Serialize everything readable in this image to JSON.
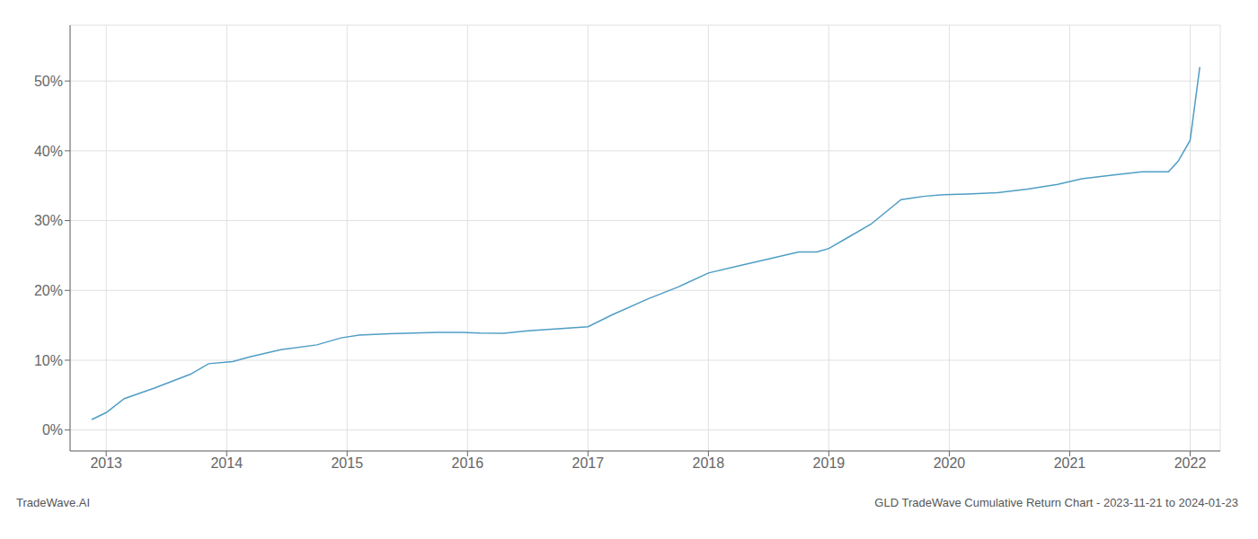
{
  "chart_data": {
    "type": "line",
    "title": "GLD TradeWave Cumulative Return Chart - 2023-11-21 to 2024-01-23",
    "annotations": [
      "TradeWave.AI"
    ],
    "x": [
      2012.88,
      2013.0,
      2013.15,
      2013.4,
      2013.7,
      2013.85,
      2014.05,
      2014.2,
      2014.45,
      2014.75,
      2014.95,
      2015.1,
      2015.35,
      2015.55,
      2015.75,
      2015.95,
      2016.1,
      2016.3,
      2016.5,
      2016.75,
      2017.0,
      2017.2,
      2017.5,
      2017.75,
      2018.0,
      2018.25,
      2018.5,
      2018.75,
      2018.9,
      2019.0,
      2019.15,
      2019.35,
      2019.6,
      2019.8,
      2019.95,
      2020.15,
      2020.4,
      2020.65,
      2020.9,
      2021.1,
      2021.35,
      2021.6,
      2021.82,
      2021.9,
      2022.0,
      2022.08
    ],
    "values": [
      1.5,
      2.5,
      4.5,
      6.0,
      8.0,
      9.5,
      9.8,
      10.5,
      11.5,
      12.2,
      13.2,
      13.6,
      13.8,
      13.9,
      14.0,
      14.0,
      13.9,
      13.85,
      14.2,
      14.5,
      14.8,
      16.5,
      18.8,
      20.5,
      22.5,
      23.5,
      24.5,
      25.5,
      25.5,
      26.0,
      27.5,
      29.5,
      33.0,
      33.5,
      33.7,
      33.8,
      34.0,
      34.5,
      35.2,
      36.0,
      36.5,
      37.0,
      37.0,
      38.5,
      41.5,
      52.0
    ],
    "color": "#4f9ec4",
    "grid": true,
    "xlim": [
      2012.7,
      2022.25
    ],
    "ylim": [
      -3,
      58
    ],
    "xticks": [
      2013,
      2014,
      2015,
      2016,
      2017,
      2018,
      2019,
      2020,
      2021,
      2022
    ],
    "yticks": [
      {
        "value": 0,
        "label": "0%"
      },
      {
        "value": 10,
        "label": "10%"
      },
      {
        "value": 20,
        "label": "20%"
      },
      {
        "value": 30,
        "label": "30%"
      },
      {
        "value": 40,
        "label": "40%"
      },
      {
        "value": 50,
        "label": "50%"
      }
    ]
  }
}
